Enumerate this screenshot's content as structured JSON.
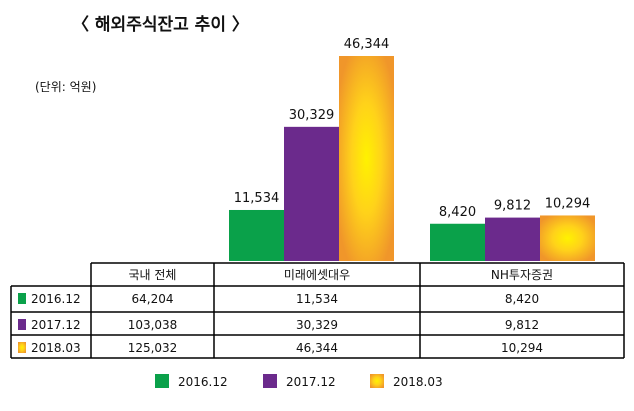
{
  "chart_data": {
    "type": "bar",
    "title": "〈 해외주식잔고 추이 〉",
    "unit_label": "(단위: 억원)",
    "categories": [
      "국내 전체",
      "미래에셋대우",
      "NH투자증권"
    ],
    "series": [
      {
        "name": "2016.12",
        "color": "#0aa14a",
        "values": [
          64204,
          11534,
          8420
        ],
        "labels": [
          "64,204",
          "11,534",
          "8,420"
        ]
      },
      {
        "name": "2017.12",
        "color": "#6b2a8c",
        "values": [
          103038,
          30329,
          9812
        ],
        "labels": [
          "103,038",
          "30,329",
          "9,812"
        ]
      },
      {
        "name": "2018.03",
        "color": "#f0962a",
        "values": [
          125032,
          46344,
          10294
        ],
        "labels": [
          "125,032",
          "46,344",
          "10,294"
        ]
      }
    ],
    "bars_drawn_for": [
      "미래에셋대우",
      "NH투자증권"
    ],
    "legend_position": "bottom"
  }
}
